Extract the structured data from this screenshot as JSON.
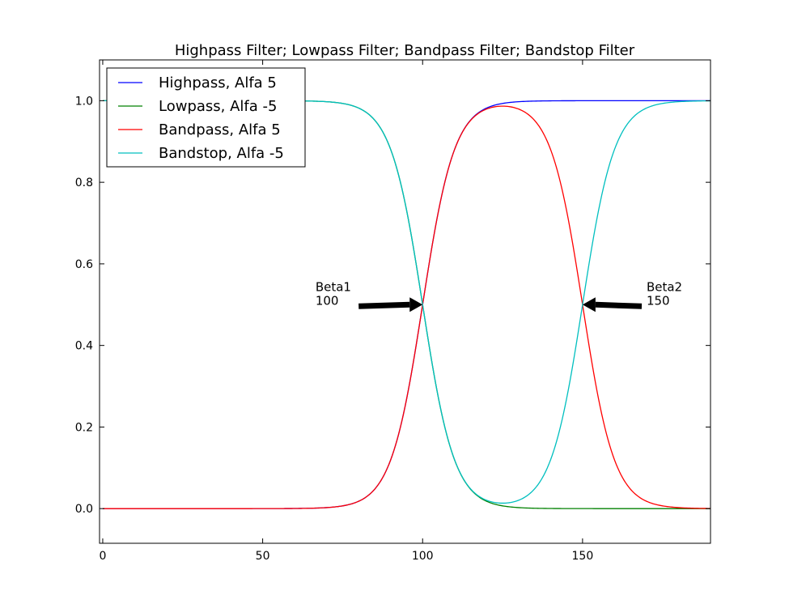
{
  "chart_data": {
    "type": "line",
    "title": "Highpass Filter; Lowpass Filter; Bandpass Filter; Bandstop Filter",
    "xlabel": "",
    "ylabel": "",
    "xlim": [
      -1,
      190
    ],
    "ylim": [
      -0.085,
      1.1
    ],
    "x_ticks": [
      "0",
      "50",
      "100",
      "150"
    ],
    "y_ticks": [
      "0.0",
      "0.2",
      "0.4",
      "0.6",
      "0.8",
      "1.0"
    ],
    "grid": false,
    "legend_position": "top-left",
    "series": [
      {
        "name": "Highpass, Alfa 5",
        "color": "#0000ff",
        "kind": "highpass",
        "alfa": 5,
        "beta1": 100,
        "beta2": 150
      },
      {
        "name": "Lowpass, Alfa -5",
        "color": "#008000",
        "kind": "lowpass",
        "alfa": -5,
        "beta1": 100,
        "beta2": 150
      },
      {
        "name": "Bandpass, Alfa 5",
        "color": "#ff0000",
        "kind": "bandpass",
        "alfa": 5,
        "beta1": 100,
        "beta2": 150
      },
      {
        "name": "Bandstop, Alfa -5",
        "color": "#00bfbf",
        "kind": "bandstop",
        "alfa": -5,
        "beta1": 100,
        "beta2": 150
      }
    ],
    "annotations": [
      {
        "label1": "Beta1",
        "label2": "100",
        "x": 100,
        "y": 0.5
      },
      {
        "label1": "Beta2",
        "label2": "150",
        "x": 150,
        "y": 0.5
      }
    ]
  }
}
